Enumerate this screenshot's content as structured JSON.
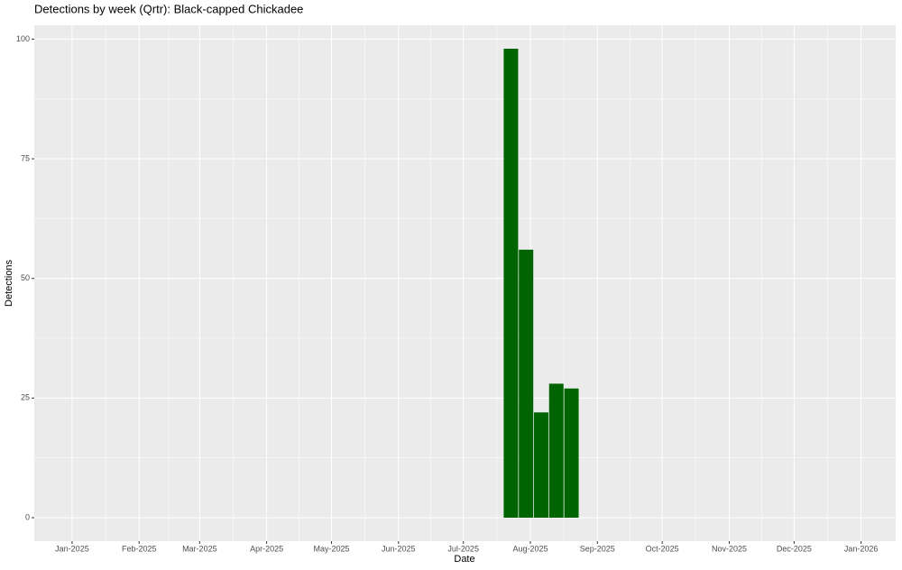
{
  "chart_data": {
    "type": "bar",
    "title": "Detections by week (Qrtr): Black-capped Chickadee",
    "x_label": "Date",
    "y_label": "Detections",
    "x": [
      203,
      210,
      217,
      224,
      231
    ],
    "values": [
      98,
      56,
      22,
      28,
      27
    ],
    "color": "#006400",
    "xlim": [
      -17.5,
      381
    ],
    "xticks": [
      {
        "value": 0,
        "label": "Jan-2025"
      },
      {
        "value": 31,
        "label": "Feb-2025"
      },
      {
        "value": 59,
        "label": "Mar-2025"
      },
      {
        "value": 90,
        "label": "Apr-2025"
      },
      {
        "value": 120,
        "label": "May-2025"
      },
      {
        "value": 151,
        "label": "Jun-2025"
      },
      {
        "value": 181,
        "label": "Jul-2025"
      },
      {
        "value": 212,
        "label": "Aug-2025"
      },
      {
        "value": 243,
        "label": "Sep-2025"
      },
      {
        "value": 273,
        "label": "Oct-2025"
      },
      {
        "value": 304,
        "label": "Nov-2025"
      },
      {
        "value": 334,
        "label": "Dec-2025"
      },
      {
        "value": 365,
        "label": "Jan-2026"
      }
    ],
    "ylim": [
      -4.9,
      102.9
    ],
    "yticks": [
      0,
      25,
      50,
      75,
      100
    ],
    "grid": true
  }
}
